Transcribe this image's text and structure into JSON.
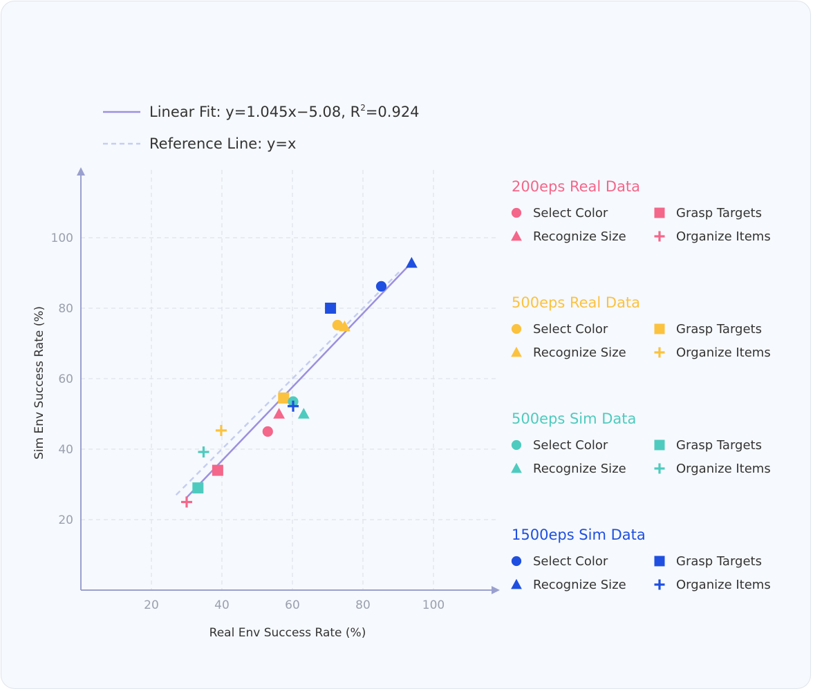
{
  "chart_data": {
    "type": "scatter",
    "xlabel": "Real Env Success Rate (%)",
    "ylabel": "Sim Env Success Rate (%)",
    "xlim": [
      0,
      115
    ],
    "ylim": [
      0,
      115
    ],
    "xticks": [
      20,
      40,
      60,
      80,
      100
    ],
    "yticks": [
      20,
      40,
      60,
      80,
      100
    ],
    "grid": true,
    "fit_line": {
      "label": "Linear Fit: y=1.045x−5.08, R",
      "label_sup": "2",
      "label_end": "=0.924",
      "slope": 1.045,
      "intercept": -5.08,
      "x_range": [
        30,
        93
      ],
      "color": "#9b8fe0"
    },
    "reference_line": {
      "label": "Reference Line: y=x",
      "x_range": [
        27,
        91
      ],
      "color": "#c5cdf0"
    },
    "legend_position": "right",
    "groups": [
      {
        "name": "200eps Real Data",
        "color": "#f4668a",
        "series": [
          {
            "name": "Select Color",
            "marker": "circle",
            "points": [
              [
                53,
                45
              ]
            ]
          },
          {
            "name": "Grasp Targets",
            "marker": "square",
            "points": [
              [
                38.8,
                34
              ]
            ]
          },
          {
            "name": "Recognize Size",
            "marker": "triangle",
            "points": [
              [
                56.2,
                50
              ]
            ]
          },
          {
            "name": "Organize Items",
            "marker": "plus",
            "points": [
              [
                30,
                25
              ]
            ]
          }
        ]
      },
      {
        "name": "500eps Real Data",
        "color": "#fbc23f",
        "series": [
          {
            "name": "Select Color",
            "marker": "circle",
            "points": [
              [
                72.8,
                75.2
              ]
            ]
          },
          {
            "name": "Grasp Targets",
            "marker": "square",
            "points": [
              [
                57.5,
                54.5
              ]
            ]
          },
          {
            "name": "Recognize Size",
            "marker": "triangle",
            "points": [
              [
                74.8,
                74.8
              ]
            ]
          },
          {
            "name": "Organize Items",
            "marker": "plus",
            "points": [
              [
                39.8,
                45.3
              ]
            ]
          }
        ]
      },
      {
        "name": "500eps Sim Data",
        "color": "#4ecbbf",
        "series": [
          {
            "name": "Select Color",
            "marker": "circle",
            "points": [
              [
                60.2,
                53.5
              ]
            ]
          },
          {
            "name": "Grasp Targets",
            "marker": "square",
            "points": [
              [
                33.2,
                29
              ]
            ]
          },
          {
            "name": "Recognize Size",
            "marker": "triangle",
            "points": [
              [
                63.2,
                50
              ]
            ]
          },
          {
            "name": "Organize Items",
            "marker": "plus",
            "points": [
              [
                34.8,
                39.2
              ]
            ]
          }
        ]
      },
      {
        "name": "1500eps Sim Data",
        "color": "#1f4fe0",
        "series": [
          {
            "name": "Select Color",
            "marker": "circle",
            "points": [
              [
                85.2,
                86.2
              ]
            ]
          },
          {
            "name": "Grasp Targets",
            "marker": "square",
            "points": [
              [
                70.8,
                80
              ]
            ]
          },
          {
            "name": "Recognize Size",
            "marker": "triangle",
            "points": [
              [
                93.8,
                92.8
              ]
            ]
          },
          {
            "name": "Organize Items",
            "marker": "plus",
            "points": [
              [
                60.2,
                52.2
              ]
            ]
          }
        ]
      }
    ]
  }
}
